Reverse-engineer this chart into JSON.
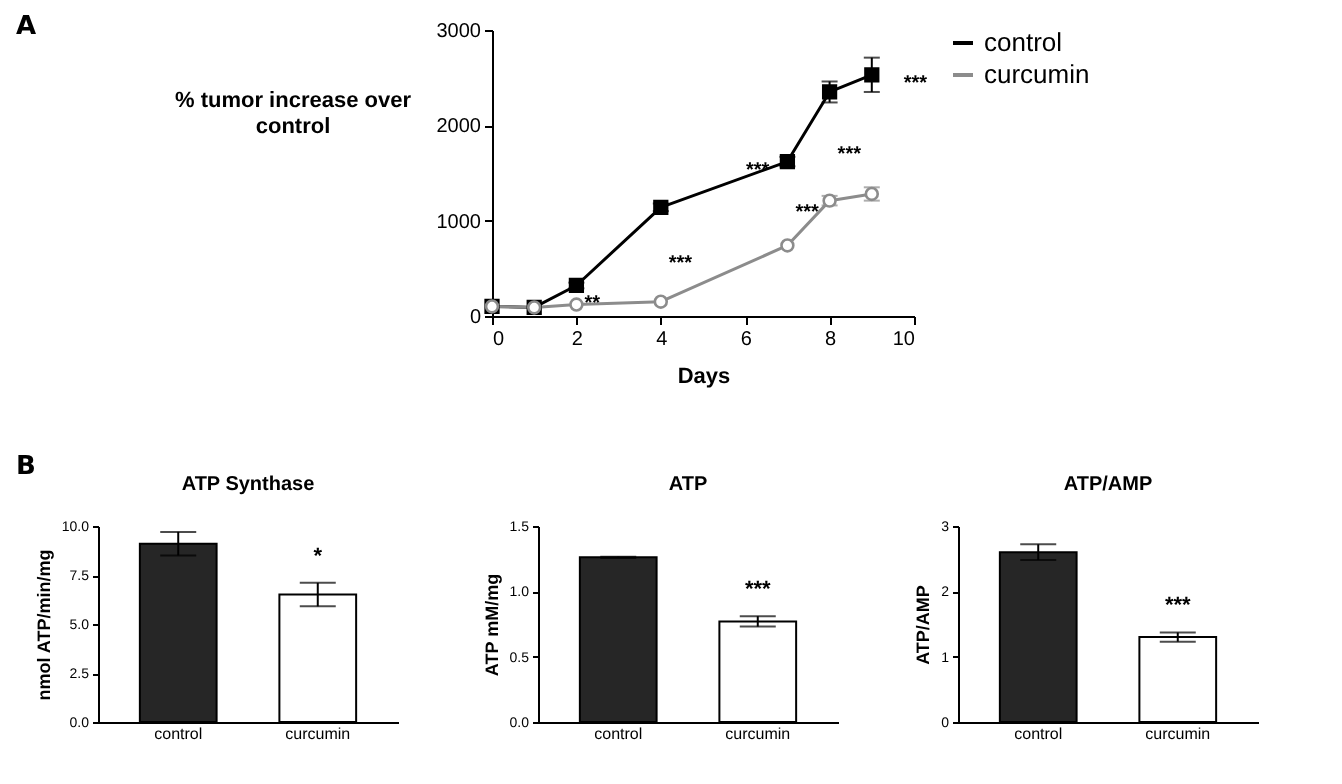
{
  "chart_data": [
    {
      "type": "line",
      "xlabel": "Days",
      "ylabel": "% tumor increase over control",
      "xlim": [
        0,
        10
      ],
      "xticks": [
        0,
        2,
        4,
        6,
        8,
        10
      ],
      "ylim": [
        0,
        3000
      ],
      "yticks": [
        0,
        1000,
        2000,
        3000
      ],
      "legend": "top right",
      "line_style": "solid",
      "series": [
        {
          "name": "control",
          "color": "#000000",
          "marker": "square",
          "x": [
            0,
            1,
            2,
            4,
            7,
            8,
            9
          ],
          "values": [
            100,
            90,
            320,
            1140,
            1620,
            2350,
            2530
          ],
          "errors": [
            null,
            null,
            30,
            40,
            50,
            110,
            180
          ]
        },
        {
          "name": "curcumin",
          "color": "#8c8c8c",
          "marker": "circle",
          "x": [
            0,
            1,
            2,
            4,
            7,
            8,
            9
          ],
          "values": [
            100,
            90,
            120,
            150,
            740,
            1210,
            1280
          ],
          "errors": [
            null,
            null,
            null,
            null,
            null,
            50,
            70
          ]
        }
      ],
      "annotations": [
        "A",
        "**",
        "***",
        "***",
        "***",
        "***",
        "***"
      ]
    },
    {
      "type": "bar",
      "title": "ATP Synthase",
      "ylabel": "nmol ATP/min/mg",
      "categories": [
        "control",
        "curcumin"
      ],
      "values": [
        9.1,
        6.5
      ],
      "errors": [
        0.6,
        0.6
      ],
      "colors": [
        "#262626",
        "#ffffff"
      ],
      "ylim": [
        0,
        10
      ],
      "yticks": [
        {
          "value": 0,
          "label": "0.0"
        },
        {
          "value": 2.5,
          "label": "2.5"
        },
        {
          "value": 5,
          "label": "5.0"
        },
        {
          "value": 7.5,
          "label": "7.5"
        },
        {
          "value": 10,
          "label": "10.0"
        }
      ],
      "annotations": [
        "B",
        {
          "text": "*",
          "x": "curcumin",
          "y": 6.5
        }
      ]
    },
    {
      "type": "bar",
      "title": "ATP",
      "ylabel": "ATP mM/mg",
      "categories": [
        "control",
        "curcumin"
      ],
      "values": [
        1.26,
        0.77
      ],
      "errors": [
        0.005,
        0.04
      ],
      "colors": [
        "#262626",
        "#ffffff"
      ],
      "ylim": [
        0,
        1.5
      ],
      "yticks": [
        {
          "value": 0,
          "label": "0.0"
        },
        {
          "value": 0.5,
          "label": "0.5"
        },
        {
          "value": 1,
          "label": "1.0"
        },
        {
          "value": 1.5,
          "label": "1.5"
        }
      ],
      "annotations": [
        {
          "text": "***",
          "x": "curcumin",
          "y": 0.77
        }
      ]
    },
    {
      "type": "bar",
      "title": "ATP/AMP",
      "ylabel": "ATP/AMP",
      "categories": [
        "control",
        "curcumin"
      ],
      "values": [
        2.6,
        1.3
      ],
      "errors": [
        0.12,
        0.07
      ],
      "colors": [
        "#262626",
        "#ffffff"
      ],
      "ylim": [
        0,
        3
      ],
      "yticks": [
        0,
        1,
        2,
        3
      ],
      "annotations": [
        {
          "text": "***",
          "x": "curcumin",
          "y": 1.3
        }
      ]
    }
  ]
}
